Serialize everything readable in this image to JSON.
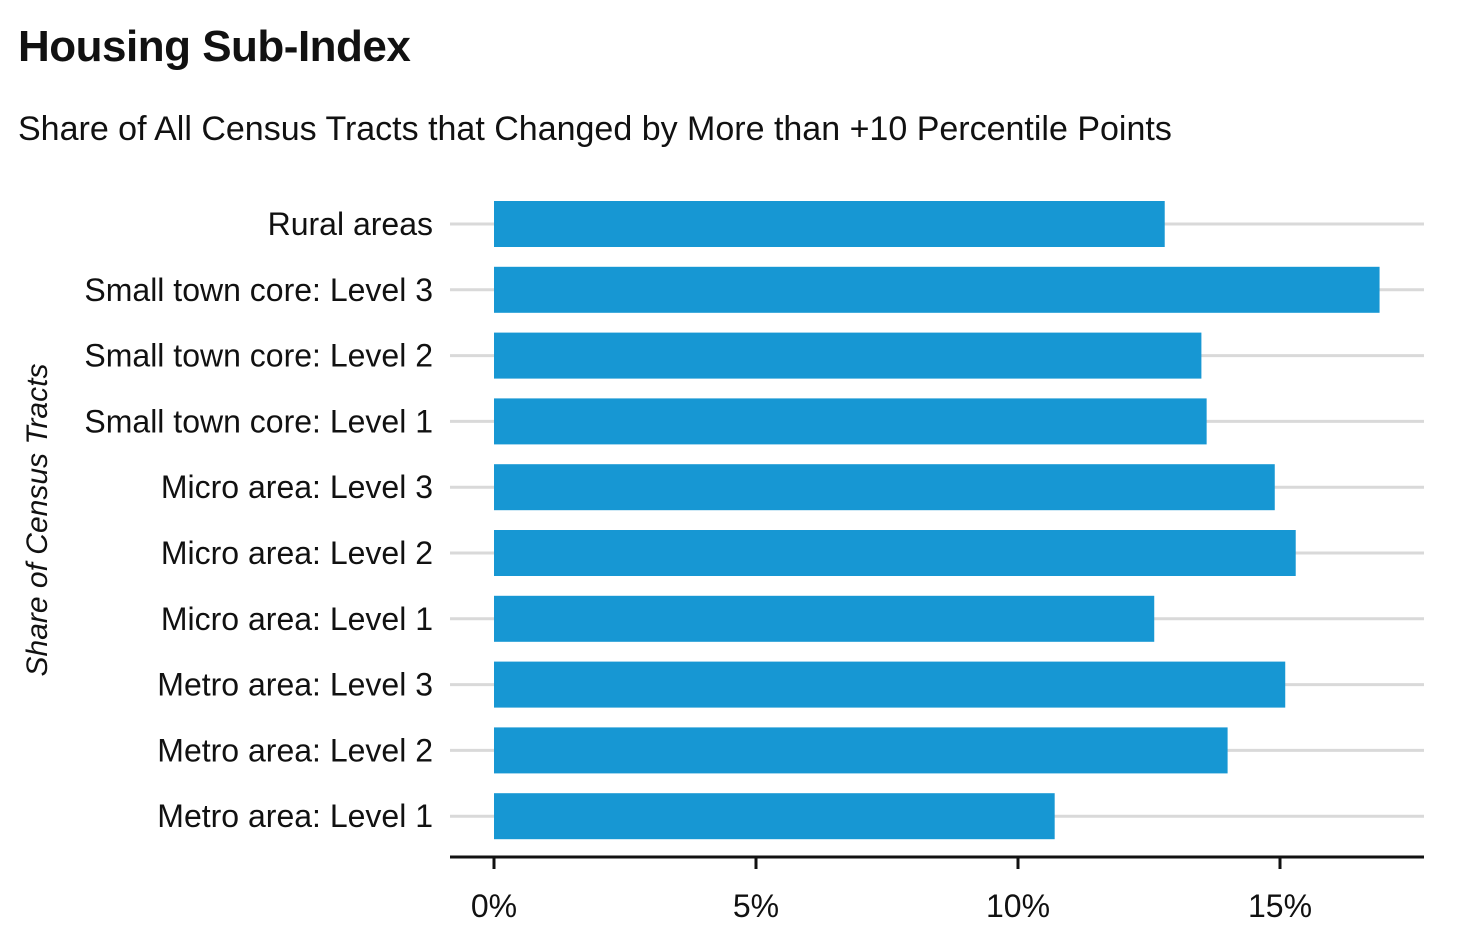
{
  "chart_data": {
    "type": "bar",
    "orientation": "horizontal",
    "title": "Housing Sub-Index",
    "subtitle": "Share of All Census Tracts that Changed by More than +10 Percentile Points",
    "ylabel": "Share of Census Tracts",
    "xlabel": "",
    "categories": [
      "Rural areas",
      "Small town core: Level 3",
      "Small town core: Level 2",
      "Small town core: Level 1",
      "Micro area: Level 3",
      "Micro area: Level 2",
      "Micro area: Level 1",
      "Metro area: Level 3",
      "Metro area: Level 2",
      "Metro area: Level 1"
    ],
    "values": [
      12.8,
      16.9,
      13.5,
      13.6,
      14.9,
      15.3,
      12.6,
      15.1,
      14.0,
      10.7
    ],
    "value_unit": "%",
    "xlim": [
      0,
      17.6
    ],
    "xticks": [
      0,
      5,
      10,
      15
    ],
    "xtick_labels": [
      "0%",
      "5%",
      "10%",
      "15%"
    ],
    "bar_color": "#1797d3",
    "grid": "horizontal"
  }
}
